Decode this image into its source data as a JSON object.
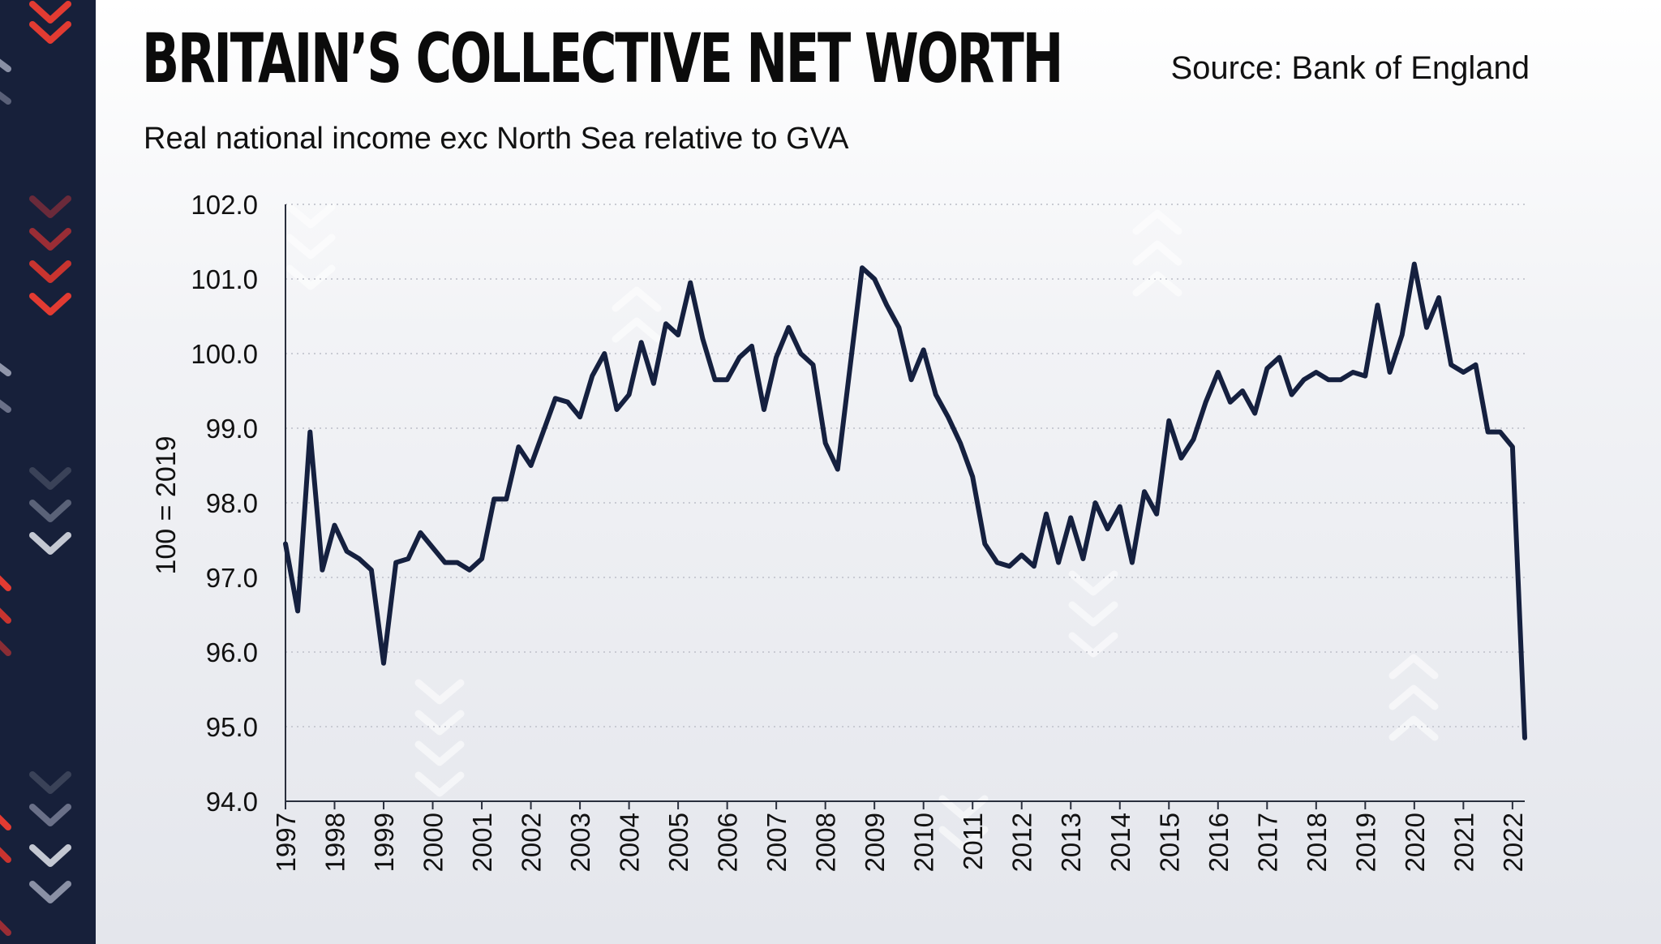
{
  "header": {
    "title": "BRITAIN’S COLLECTIVE NET WORTH",
    "source": "Source: Bank of England",
    "subtitle": "Real national income exc North Sea relative to GVA"
  },
  "colors": {
    "line": "#15203f",
    "sidebar": "#17203a",
    "accent_red": "#e23b32",
    "grid": "#c9cbd3"
  },
  "chart_data": {
    "type": "line",
    "title": "BRITAIN’S COLLECTIVE NET WORTH",
    "subtitle": "Real national income exc North Sea relative to GVA",
    "xlabel": "",
    "ylabel": "100 = 2019",
    "ylim": [
      94.0,
      102.0
    ],
    "xlim": [
      1997.0,
      2022.25
    ],
    "grid": true,
    "y_ticks": [
      "102.0",
      "101.0",
      "100.0",
      "99.0",
      "98.0",
      "97.0",
      "96.0",
      "95.0",
      "94.0"
    ],
    "x_ticks": [
      "1997",
      "1998",
      "1999",
      "2000",
      "2001",
      "2002",
      "2003",
      "2004",
      "2005",
      "2006",
      "2007",
      "2008",
      "2009",
      "2010",
      "2011",
      "2012",
      "2013",
      "2014",
      "2015",
      "2016",
      "2017",
      "2018",
      "2019",
      "2020",
      "2021",
      "2022"
    ],
    "series": [
      {
        "name": "Real national income exc North Sea relative to GVA",
        "start": 1997.0,
        "step": 0.25,
        "values": [
          97.45,
          96.55,
          98.95,
          97.1,
          97.7,
          97.35,
          97.25,
          97.1,
          95.85,
          97.2,
          97.25,
          97.6,
          97.4,
          97.2,
          97.2,
          97.1,
          97.25,
          98.05,
          98.05,
          98.75,
          98.5,
          98.95,
          99.4,
          99.35,
          99.15,
          99.7,
          100.0,
          99.25,
          99.45,
          100.15,
          99.6,
          100.4,
          100.25,
          100.95,
          100.2,
          99.65,
          99.65,
          99.95,
          100.1,
          99.25,
          99.95,
          100.35,
          100.0,
          99.85,
          98.8,
          98.45,
          99.8,
          101.15,
          101.0,
          100.65,
          100.35,
          99.65,
          100.05,
          99.45,
          99.15,
          98.8,
          98.35,
          97.45,
          97.2,
          97.15,
          97.3,
          97.15,
          97.85,
          97.2,
          97.8,
          97.25,
          98.0,
          97.65,
          97.95,
          97.2,
          98.15,
          97.85,
          99.1,
          98.6,
          98.85,
          99.35,
          99.75,
          99.35,
          99.5,
          99.2,
          99.8,
          99.95,
          99.45,
          99.65,
          99.75,
          99.65,
          99.65,
          99.75,
          99.7,
          100.65,
          99.75,
          100.25,
          101.2,
          100.35,
          100.75,
          99.85,
          99.75,
          99.85,
          98.95,
          98.95,
          98.75,
          94.85
        ]
      }
    ]
  }
}
